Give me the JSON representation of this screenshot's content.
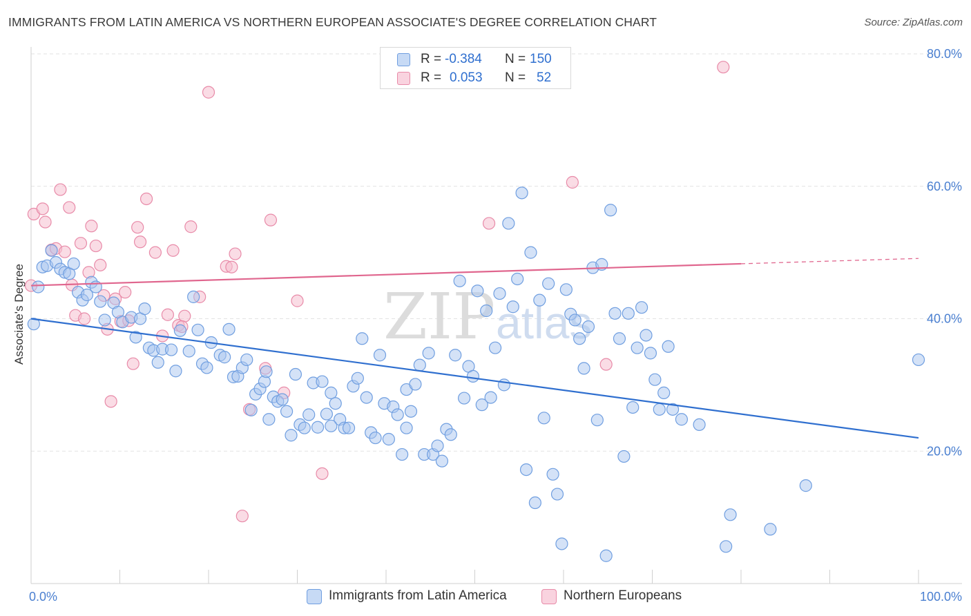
{
  "header": {
    "title": "IMMIGRANTS FROM LATIN AMERICA VS NORTHERN EUROPEAN ASSOCIATE'S DEGREE CORRELATION CHART",
    "source": "Source: ZipAtlas.com"
  },
  "watermark": {
    "text_a": "ZIP",
    "text_b": "atlas"
  },
  "legend": {
    "rows": [
      {
        "r_label": "R =",
        "r_value": "-0.384",
        "n_label": "N =",
        "n_value": "150"
      },
      {
        "r_label": "R =",
        "r_value": "0.053",
        "n_label": "N =",
        "n_value": "52"
      }
    ]
  },
  "colors": {
    "blue_fill": "#a9c6f0",
    "blue_stroke": "#6f9ee0",
    "blue_line": "#2f6fcf",
    "pink_fill": "#f6bfd0",
    "pink_stroke": "#e88aa8",
    "pink_line": "#e0668e",
    "grid": "#e2e2e2",
    "axis_text": "#4a7fd0"
  },
  "chart_data": {
    "type": "scatter",
    "title": "IMMIGRANTS FROM LATIN AMERICA VS NORTHERN EUROPEAN ASSOCIATE'S DEGREE CORRELATION CHART",
    "xlabel": "",
    "ylabel": "Associate's Degree",
    "xlim": [
      0,
      100
    ],
    "ylim": [
      0,
      80
    ],
    "y_ticks": [
      20,
      40,
      60,
      80
    ],
    "y_tick_labels": [
      "20.0%",
      "40.0%",
      "60.0%",
      "80.0%"
    ],
    "x_tick_labels": [
      "0.0%",
      "100.0%"
    ],
    "grid": true,
    "legend_position": "top-center",
    "series": [
      {
        "name": "Immigrants from Latin America",
        "color": "#a9c6f0",
        "trend": {
          "x": [
            0,
            100
          ],
          "y": [
            40.0,
            22.0
          ],
          "dashed_from": null
        },
        "points": [
          [
            0.3,
            39.2
          ],
          [
            0.8,
            44.8
          ],
          [
            1.3,
            47.8
          ],
          [
            1.8,
            48.0
          ],
          [
            2.3,
            50.3
          ],
          [
            2.8,
            48.5
          ],
          [
            3.3,
            47.5
          ],
          [
            3.8,
            47.0
          ],
          [
            4.3,
            46.8
          ],
          [
            4.8,
            48.3
          ],
          [
            5.3,
            44.0
          ],
          [
            5.8,
            42.8
          ],
          [
            6.3,
            43.6
          ],
          [
            6.8,
            45.5
          ],
          [
            7.3,
            44.8
          ],
          [
            7.8,
            42.6
          ],
          [
            8.3,
            39.8
          ],
          [
            9.3,
            42.4
          ],
          [
            9.8,
            41.0
          ],
          [
            10.3,
            39.5
          ],
          [
            11.3,
            40.2
          ],
          [
            11.8,
            37.2
          ],
          [
            12.3,
            40.0
          ],
          [
            12.8,
            41.5
          ],
          [
            13.3,
            35.6
          ],
          [
            13.8,
            35.2
          ],
          [
            14.3,
            33.4
          ],
          [
            14.8,
            35.4
          ],
          [
            15.8,
            35.3
          ],
          [
            16.3,
            32.1
          ],
          [
            16.8,
            38.2
          ],
          [
            17.8,
            35.1
          ],
          [
            18.3,
            43.3
          ],
          [
            19.3,
            33.2
          ],
          [
            19.8,
            32.6
          ],
          [
            20.3,
            36.4
          ],
          [
            21.3,
            34.5
          ],
          [
            21.8,
            34.2
          ],
          [
            22.3,
            38.4
          ],
          [
            22.8,
            31.2
          ],
          [
            23.3,
            31.3
          ],
          [
            23.8,
            32.6
          ],
          [
            24.3,
            33.8
          ],
          [
            24.8,
            26.2
          ],
          [
            25.3,
            28.6
          ],
          [
            25.8,
            29.4
          ],
          [
            26.3,
            30.5
          ],
          [
            26.8,
            24.8
          ],
          [
            27.3,
            28.2
          ],
          [
            27.8,
            27.5
          ],
          [
            28.3,
            27.8
          ],
          [
            28.8,
            26.0
          ],
          [
            29.3,
            22.4
          ],
          [
            29.8,
            31.6
          ],
          [
            30.3,
            24.0
          ],
          [
            30.8,
            23.5
          ],
          [
            31.3,
            25.5
          ],
          [
            31.8,
            30.3
          ],
          [
            32.3,
            23.6
          ],
          [
            32.8,
            30.5
          ],
          [
            33.3,
            25.6
          ],
          [
            33.8,
            28.8
          ],
          [
            34.3,
            27.2
          ],
          [
            34.8,
            24.8
          ],
          [
            35.3,
            23.5
          ],
          [
            35.8,
            23.5
          ],
          [
            36.3,
            29.8
          ],
          [
            36.8,
            31.0
          ],
          [
            37.3,
            37.0
          ],
          [
            37.8,
            28.1
          ],
          [
            38.3,
            22.8
          ],
          [
            38.8,
            22.0
          ],
          [
            39.3,
            34.5
          ],
          [
            39.8,
            27.2
          ],
          [
            40.3,
            21.8
          ],
          [
            40.8,
            26.7
          ],
          [
            41.3,
            25.5
          ],
          [
            41.8,
            19.5
          ],
          [
            42.3,
            29.3
          ],
          [
            42.8,
            26.0
          ],
          [
            43.3,
            30.1
          ],
          [
            43.8,
            33.0
          ],
          [
            44.3,
            19.5
          ],
          [
            44.8,
            34.8
          ],
          [
            45.3,
            19.5
          ],
          [
            45.8,
            20.8
          ],
          [
            46.3,
            18.5
          ],
          [
            46.8,
            23.3
          ],
          [
            47.3,
            22.5
          ],
          [
            47.8,
            34.5
          ],
          [
            48.3,
            45.7
          ],
          [
            48.8,
            28.0
          ],
          [
            49.3,
            32.8
          ],
          [
            49.8,
            31.3
          ],
          [
            50.3,
            44.2
          ],
          [
            50.8,
            27.0
          ],
          [
            51.3,
            41.2
          ],
          [
            51.8,
            28.1
          ],
          [
            52.3,
            35.6
          ],
          [
            52.8,
            43.8
          ],
          [
            53.3,
            30.0
          ],
          [
            53.8,
            54.4
          ],
          [
            54.3,
            41.8
          ],
          [
            54.8,
            46.0
          ],
          [
            55.3,
            59.0
          ],
          [
            55.8,
            17.2
          ],
          [
            56.3,
            50.0
          ],
          [
            56.8,
            12.2
          ],
          [
            57.3,
            42.8
          ],
          [
            57.8,
            25.0
          ],
          [
            58.3,
            45.3
          ],
          [
            58.8,
            16.5
          ],
          [
            59.3,
            13.5
          ],
          [
            59.8,
            6.0
          ],
          [
            60.3,
            44.4
          ],
          [
            60.8,
            40.7
          ],
          [
            61.3,
            39.8
          ],
          [
            61.8,
            37.0
          ],
          [
            62.3,
            32.5
          ],
          [
            62.8,
            38.8
          ],
          [
            63.3,
            47.7
          ],
          [
            63.8,
            24.7
          ],
          [
            64.3,
            48.2
          ],
          [
            64.8,
            4.2
          ],
          [
            65.3,
            56.4
          ],
          [
            65.8,
            40.8
          ],
          [
            66.3,
            37.0
          ],
          [
            66.8,
            19.2
          ],
          [
            67.3,
            40.8
          ],
          [
            67.8,
            26.6
          ],
          [
            68.3,
            35.6
          ],
          [
            68.8,
            41.7
          ],
          [
            69.3,
            37.5
          ],
          [
            69.8,
            34.8
          ],
          [
            70.3,
            30.8
          ],
          [
            70.8,
            26.3
          ],
          [
            71.3,
            28.8
          ],
          [
            71.8,
            35.8
          ],
          [
            72.3,
            26.3
          ],
          [
            73.3,
            24.8
          ],
          [
            75.3,
            24.0
          ],
          [
            78.3,
            5.6
          ],
          [
            78.8,
            10.4
          ],
          [
            83.3,
            8.2
          ],
          [
            87.3,
            14.8
          ],
          [
            100.0,
            33.8
          ],
          [
            42.3,
            23.5
          ],
          [
            33.8,
            23.8
          ],
          [
            26.5,
            32.0
          ],
          [
            18.8,
            38.3
          ]
        ]
      },
      {
        "name": "Northern Europeans",
        "color": "#f6bfd0",
        "trend": {
          "x": [
            0,
            80
          ],
          "y": [
            45.0,
            48.3
          ],
          "dashed_from": 80,
          "dashed_to": [
            100,
            49.1
          ]
        },
        "points": [
          [
            0.3,
            55.8
          ],
          [
            1.3,
            56.6
          ],
          [
            1.6,
            54.6
          ],
          [
            2.3,
            50.4
          ],
          [
            2.8,
            50.6
          ],
          [
            3.3,
            59.5
          ],
          [
            3.8,
            50.1
          ],
          [
            4.3,
            56.8
          ],
          [
            4.6,
            45.1
          ],
          [
            5.0,
            40.5
          ],
          [
            5.6,
            51.4
          ],
          [
            6.0,
            40.0
          ],
          [
            6.5,
            47.0
          ],
          [
            6.8,
            54.0
          ],
          [
            7.3,
            51.0
          ],
          [
            7.8,
            48.1
          ],
          [
            8.2,
            43.5
          ],
          [
            8.6,
            38.4
          ],
          [
            9.0,
            27.5
          ],
          [
            9.5,
            43.0
          ],
          [
            10.1,
            39.6
          ],
          [
            10.6,
            44.0
          ],
          [
            11.0,
            39.7
          ],
          [
            11.5,
            33.2
          ],
          [
            12.0,
            53.8
          ],
          [
            12.3,
            51.6
          ],
          [
            13.0,
            58.1
          ],
          [
            14.0,
            50.0
          ],
          [
            14.8,
            37.4
          ],
          [
            15.4,
            40.6
          ],
          [
            16.0,
            50.3
          ],
          [
            16.6,
            39.0
          ],
          [
            17.3,
            40.4
          ],
          [
            18.0,
            53.9
          ],
          [
            19.0,
            43.3
          ],
          [
            20.0,
            74.2
          ],
          [
            22.0,
            47.9
          ],
          [
            22.6,
            47.8
          ],
          [
            23.0,
            49.8
          ],
          [
            23.8,
            10.2
          ],
          [
            24.6,
            26.3
          ],
          [
            26.4,
            32.5
          ],
          [
            27.0,
            54.9
          ],
          [
            28.5,
            28.8
          ],
          [
            30.0,
            42.7
          ],
          [
            32.8,
            16.6
          ],
          [
            51.6,
            54.4
          ],
          [
            61.0,
            60.6
          ],
          [
            64.8,
            33.1
          ],
          [
            78.0,
            78.0
          ],
          [
            0.0,
            45.0
          ],
          [
            17.0,
            38.8
          ]
        ]
      }
    ]
  },
  "bottom_legend": [
    {
      "label": "Immigrants from Latin America"
    },
    {
      "label": "Northern Europeans"
    }
  ]
}
